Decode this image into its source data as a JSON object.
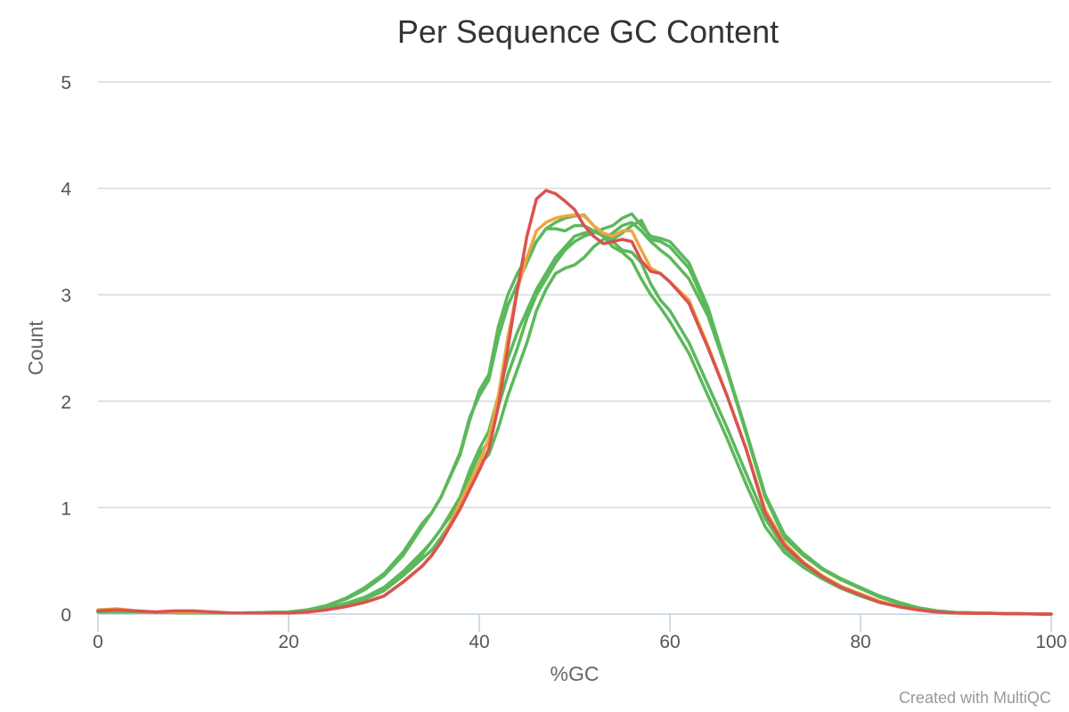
{
  "chart_data": {
    "type": "line",
    "title": "Per Sequence GC Content",
    "xlabel": "%GC",
    "ylabel": "Count",
    "xlim": [
      0,
      100
    ],
    "ylim": [
      0,
      5
    ],
    "xticks": [
      0,
      20,
      40,
      60,
      80,
      100
    ],
    "yticks": [
      0,
      1,
      2,
      3,
      4,
      5
    ],
    "grid": true,
    "legend": "none",
    "credit": "Created with MultiQC",
    "colors": {
      "red": "#d9534f",
      "orange": "#f0a541",
      "green": "#5cb85c"
    },
    "series": [
      {
        "color": "#d9534f",
        "x": [
          0,
          2,
          4,
          6,
          8,
          10,
          12,
          14,
          16,
          18,
          20,
          22,
          24,
          26,
          28,
          30,
          32,
          34,
          35,
          36,
          38,
          40,
          41,
          42,
          43,
          44,
          45,
          46,
          47,
          48,
          49,
          50,
          51,
          52,
          53,
          54,
          55,
          56,
          57,
          58,
          59,
          60,
          62,
          64,
          66,
          68,
          70,
          72,
          74,
          76,
          78,
          80,
          82,
          84,
          86,
          88,
          90,
          95,
          100
        ],
        "y": [
          0.03,
          0.04,
          0.03,
          0.02,
          0.03,
          0.03,
          0.02,
          0.01,
          0.01,
          0.01,
          0.01,
          0.02,
          0.04,
          0.07,
          0.11,
          0.17,
          0.3,
          0.45,
          0.55,
          0.68,
          0.99,
          1.35,
          1.55,
          1.95,
          2.5,
          3.05,
          3.55,
          3.9,
          3.98,
          3.95,
          3.88,
          3.8,
          3.65,
          3.55,
          3.48,
          3.5,
          3.52,
          3.5,
          3.32,
          3.22,
          3.2,
          3.12,
          2.92,
          2.5,
          2.05,
          1.55,
          0.95,
          0.65,
          0.48,
          0.35,
          0.25,
          0.18,
          0.11,
          0.07,
          0.04,
          0.02,
          0.01,
          0.005,
          0
        ]
      },
      {
        "color": "#f0a541",
        "x": [
          0,
          2,
          4,
          6,
          8,
          10,
          12,
          14,
          16,
          18,
          20,
          22,
          24,
          26,
          28,
          30,
          32,
          34,
          35,
          36,
          38,
          40,
          41,
          42,
          43,
          44,
          45,
          46,
          47,
          48,
          49,
          50,
          51,
          52,
          53,
          54,
          55,
          56,
          57,
          58,
          59,
          60,
          62,
          64,
          66,
          68,
          70,
          72,
          74,
          76,
          78,
          80,
          82,
          84,
          86,
          88,
          90,
          95,
          100
        ],
        "y": [
          0.04,
          0.05,
          0.03,
          0.02,
          0.02,
          0.02,
          0.02,
          0.01,
          0.01,
          0.01,
          0.01,
          0.02,
          0.04,
          0.07,
          0.11,
          0.17,
          0.3,
          0.45,
          0.55,
          0.68,
          1.05,
          1.42,
          1.65,
          2.05,
          2.6,
          3.05,
          3.35,
          3.6,
          3.68,
          3.72,
          3.74,
          3.75,
          3.74,
          3.65,
          3.58,
          3.55,
          3.6,
          3.6,
          3.42,
          3.25,
          3.2,
          3.12,
          2.95,
          2.52,
          2.05,
          1.55,
          0.98,
          0.67,
          0.49,
          0.36,
          0.26,
          0.19,
          0.12,
          0.07,
          0.04,
          0.02,
          0.01,
          0.005,
          0
        ]
      },
      {
        "color": "#5cb85c",
        "x": [
          0,
          5,
          10,
          15,
          20,
          22,
          24,
          26,
          28,
          30,
          32,
          34,
          35,
          36,
          38,
          39,
          40,
          41,
          42,
          43,
          44,
          45,
          46,
          47,
          48,
          49,
          50,
          51,
          52,
          53,
          54,
          55,
          56,
          57,
          58,
          59,
          60,
          62,
          64,
          66,
          68,
          70,
          72,
          74,
          76,
          78,
          80,
          82,
          84,
          86,
          88,
          90,
          95,
          100
        ],
        "y": [
          0.02,
          0.02,
          0.01,
          0.01,
          0.02,
          0.04,
          0.08,
          0.15,
          0.25,
          0.38,
          0.58,
          0.85,
          0.95,
          1.1,
          1.5,
          1.82,
          2.1,
          2.25,
          2.7,
          3.0,
          3.2,
          3.35,
          3.5,
          3.62,
          3.62,
          3.6,
          3.65,
          3.65,
          3.6,
          3.55,
          3.52,
          3.58,
          3.65,
          3.7,
          3.52,
          3.5,
          3.45,
          3.25,
          2.85,
          2.3,
          1.7,
          1.1,
          0.72,
          0.55,
          0.42,
          0.33,
          0.24,
          0.17,
          0.11,
          0.06,
          0.03,
          0.015,
          0.005,
          0
        ]
      },
      {
        "color": "#5cb85c",
        "x": [
          0,
          5,
          10,
          15,
          20,
          22,
          24,
          26,
          28,
          30,
          32,
          34,
          35,
          36,
          38,
          39,
          40,
          41,
          42,
          43,
          44,
          45,
          46,
          47,
          48,
          49,
          50,
          51,
          52,
          53,
          54,
          55,
          56,
          57,
          58,
          59,
          60,
          62,
          64,
          66,
          68,
          70,
          72,
          74,
          76,
          78,
          80,
          82,
          84,
          86,
          88,
          90,
          95,
          100
        ],
        "y": [
          0.02,
          0.02,
          0.01,
          0.01,
          0.02,
          0.04,
          0.08,
          0.14,
          0.23,
          0.36,
          0.55,
          0.82,
          0.95,
          1.1,
          1.52,
          1.85,
          2.05,
          2.2,
          2.6,
          2.9,
          3.1,
          3.3,
          3.5,
          3.62,
          3.68,
          3.72,
          3.74,
          3.75,
          3.65,
          3.55,
          3.45,
          3.4,
          3.32,
          3.15,
          3.0,
          2.88,
          2.75,
          2.45,
          2.05,
          1.65,
          1.22,
          0.82,
          0.58,
          0.44,
          0.33,
          0.24,
          0.17,
          0.11,
          0.07,
          0.04,
          0.02,
          0.01,
          0.005,
          0
        ]
      },
      {
        "color": "#5cb85c",
        "x": [
          0,
          5,
          10,
          15,
          20,
          22,
          24,
          26,
          28,
          30,
          32,
          34,
          35,
          36,
          38,
          39,
          40,
          41,
          42,
          43,
          44,
          45,
          46,
          47,
          48,
          49,
          50,
          51,
          52,
          53,
          54,
          55,
          56,
          57,
          58,
          59,
          60,
          62,
          64,
          66,
          68,
          70,
          72,
          74,
          76,
          78,
          80,
          82,
          84,
          86,
          88,
          90,
          95,
          100
        ],
        "y": [
          0.02,
          0.02,
          0.01,
          0.01,
          0.01,
          0.03,
          0.06,
          0.1,
          0.16,
          0.25,
          0.4,
          0.58,
          0.68,
          0.8,
          1.1,
          1.35,
          1.55,
          1.72,
          2.05,
          2.4,
          2.65,
          2.85,
          3.05,
          3.2,
          3.35,
          3.45,
          3.55,
          3.58,
          3.6,
          3.55,
          3.5,
          3.42,
          3.4,
          3.3,
          3.1,
          2.95,
          2.85,
          2.55,
          2.15,
          1.75,
          1.32,
          0.9,
          0.62,
          0.47,
          0.35,
          0.26,
          0.18,
          0.12,
          0.07,
          0.04,
          0.02,
          0.01,
          0.005,
          0
        ]
      },
      {
        "color": "#5cb85c",
        "x": [
          0,
          5,
          10,
          15,
          20,
          22,
          24,
          26,
          28,
          30,
          32,
          34,
          35,
          36,
          38,
          39,
          40,
          41,
          42,
          43,
          44,
          45,
          46,
          47,
          48,
          49,
          50,
          51,
          52,
          53,
          54,
          55,
          56,
          57,
          58,
          59,
          60,
          62,
          64,
          66,
          68,
          70,
          72,
          74,
          76,
          78,
          80,
          82,
          84,
          86,
          88,
          90,
          95,
          100
        ],
        "y": [
          0.02,
          0.02,
          0.01,
          0.01,
          0.01,
          0.03,
          0.05,
          0.09,
          0.14,
          0.22,
          0.38,
          0.56,
          0.68,
          0.8,
          1.05,
          1.3,
          1.5,
          1.62,
          1.95,
          2.25,
          2.5,
          2.78,
          3.0,
          3.15,
          3.3,
          3.42,
          3.5,
          3.55,
          3.58,
          3.62,
          3.65,
          3.72,
          3.76,
          3.65,
          3.55,
          3.53,
          3.5,
          3.3,
          2.88,
          2.3,
          1.72,
          1.12,
          0.75,
          0.57,
          0.43,
          0.33,
          0.25,
          0.17,
          0.11,
          0.06,
          0.03,
          0.015,
          0.005,
          0
        ]
      },
      {
        "color": "#5cb85c",
        "x": [
          0,
          5,
          10,
          15,
          20,
          22,
          24,
          26,
          28,
          30,
          32,
          34,
          35,
          36,
          38,
          39,
          40,
          41,
          42,
          43,
          44,
          45,
          46,
          47,
          48,
          49,
          50,
          51,
          52,
          53,
          54,
          55,
          56,
          57,
          58,
          59,
          60,
          62,
          64,
          66,
          68,
          70,
          72,
          74,
          76,
          78,
          80,
          82,
          84,
          86,
          88,
          90,
          95,
          100
        ],
        "y": [
          0.02,
          0.02,
          0.01,
          0.01,
          0.01,
          0.03,
          0.05,
          0.09,
          0.14,
          0.22,
          0.36,
          0.52,
          0.6,
          0.72,
          1.0,
          1.2,
          1.4,
          1.5,
          1.75,
          2.05,
          2.3,
          2.55,
          2.85,
          3.05,
          3.2,
          3.25,
          3.28,
          3.35,
          3.45,
          3.52,
          3.58,
          3.65,
          3.68,
          3.6,
          3.5,
          3.42,
          3.35,
          3.15,
          2.8,
          2.28,
          1.7,
          1.1,
          0.72,
          0.55,
          0.42,
          0.32,
          0.24,
          0.16,
          0.1,
          0.06,
          0.03,
          0.015,
          0.005,
          0
        ]
      }
    ]
  }
}
